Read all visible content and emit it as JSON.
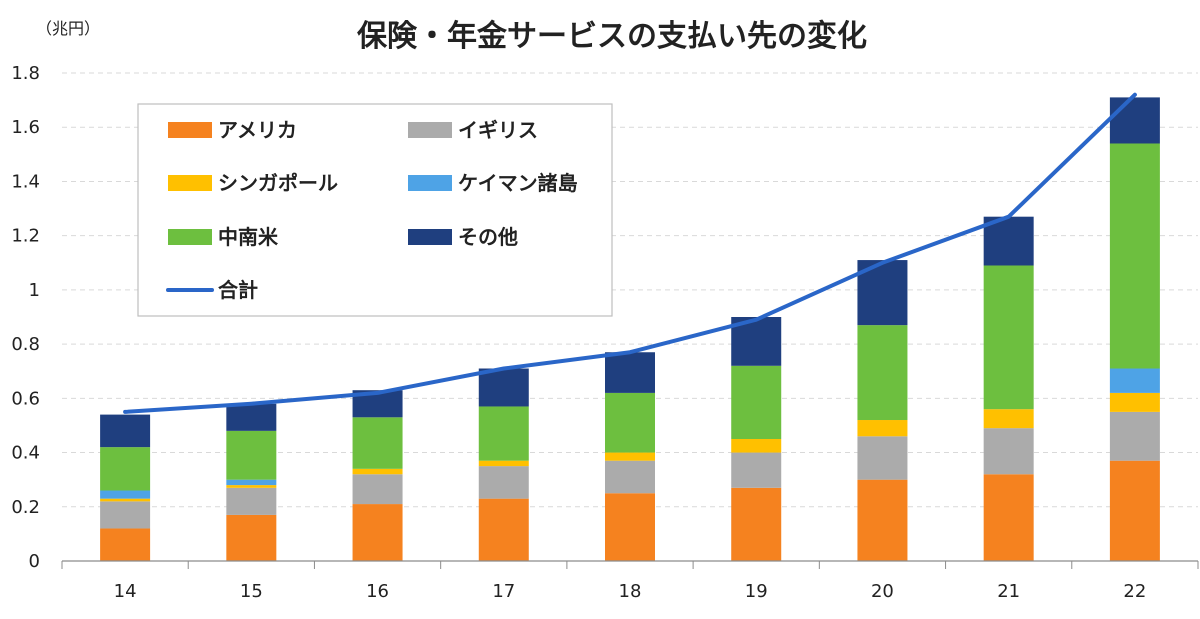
{
  "chart_data": {
    "type": "bar",
    "title": "保険・年金サービスの支払い先の変化",
    "unit_label": "（兆円）",
    "ylim": [
      0,
      1.8
    ],
    "yticks": [
      "0",
      "0.2",
      "0.4",
      "0.6",
      "0.8",
      "1",
      "1.2",
      "1.4",
      "1.6",
      "1.8"
    ],
    "ytick_values": [
      0,
      0.2,
      0.4,
      0.6,
      0.8,
      1.0,
      1.2,
      1.4,
      1.6,
      1.8
    ],
    "categories": [
      "14",
      "15",
      "16",
      "17",
      "18",
      "19",
      "20",
      "21",
      "22"
    ],
    "grid": true,
    "legend_position": "top-left",
    "series": [
      {
        "name": "アメリカ",
        "type": "bar",
        "color": "#F5821F",
        "values": [
          0.12,
          0.17,
          0.21,
          0.23,
          0.25,
          0.27,
          0.3,
          0.32,
          0.37
        ]
      },
      {
        "name": "イギリス",
        "type": "bar",
        "color": "#ABABAB",
        "values": [
          0.1,
          0.1,
          0.11,
          0.12,
          0.12,
          0.13,
          0.16,
          0.17,
          0.18
        ]
      },
      {
        "name": "シンガポール",
        "type": "bar",
        "color": "#FFC000",
        "values": [
          0.01,
          0.01,
          0.02,
          0.02,
          0.03,
          0.05,
          0.06,
          0.07,
          0.07
        ]
      },
      {
        "name": "ケイマン諸島",
        "type": "bar",
        "color": "#4EA3E6",
        "values": [
          0.03,
          0.02,
          0.0,
          0.0,
          0.0,
          0.0,
          0.0,
          0.0,
          0.09
        ]
      },
      {
        "name": "中南米",
        "type": "bar",
        "color": "#6DBF3F",
        "values": [
          0.16,
          0.18,
          0.19,
          0.2,
          0.22,
          0.27,
          0.35,
          0.53,
          0.83
        ]
      },
      {
        "name": "その他",
        "type": "bar",
        "color": "#1F3F7F",
        "values": [
          0.12,
          0.1,
          0.1,
          0.14,
          0.15,
          0.18,
          0.24,
          0.18,
          0.17
        ]
      },
      {
        "name": "合計",
        "type": "line",
        "color": "#2A66C8",
        "values": [
          0.55,
          0.58,
          0.62,
          0.71,
          0.77,
          0.89,
          1.1,
          1.27,
          1.72
        ]
      }
    ]
  }
}
